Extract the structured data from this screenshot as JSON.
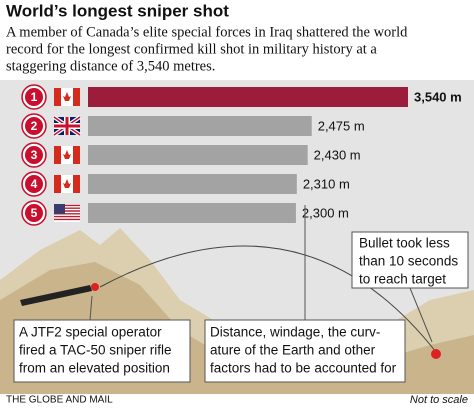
{
  "chart_data": {
    "type": "bar",
    "title": "World’s longest sniper shot",
    "subtitle": [
      "A member of Canada’s elite special forces in Iraq shattered the world",
      "record for the longest confirmed kill shot in military history at a",
      "staggering distance of 3,540 metres."
    ],
    "categories": [
      "1",
      "2",
      "3",
      "4",
      "5"
    ],
    "values": [
      3540,
      2475,
      2430,
      2310,
      2300
    ],
    "value_labels": [
      "3,540 m",
      "2,475 m",
      "2,430 m",
      "2,310 m",
      "2,300 m"
    ],
    "colors": [
      "#9c1c3b",
      "#a3a3a3",
      "#a3a3a3",
      "#a3a3a3",
      "#a3a3a3"
    ],
    "annotations": [
      [
        "A JTF2 special operator",
        "fired a TAC-50 sniper rifle",
        "from an elevated position"
      ],
      [
        "Distance, windage, the curv-",
        "ature of the Earth and other",
        "factors had to be accounted for"
      ],
      [
        "Bullet took less",
        "than 10 seconds",
        "to reach target"
      ]
    ],
    "note": "Not to scale",
    "source": "THE GLOBE AND MAIL"
  }
}
